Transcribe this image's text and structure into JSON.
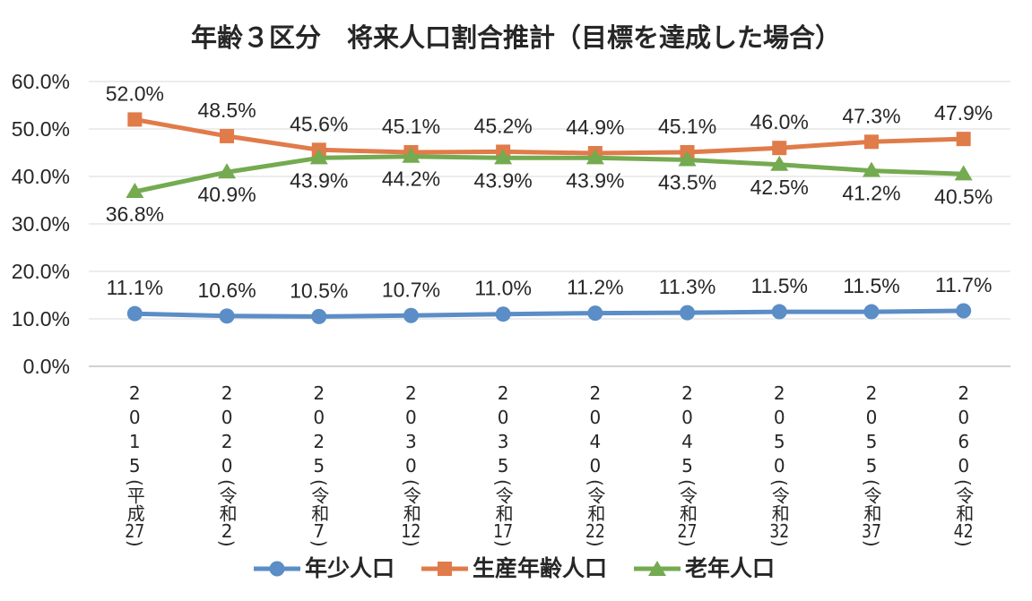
{
  "chart_data": {
    "type": "line",
    "title": "年齢３区分　将来人口割合推計（目標を達成した場合）",
    "categories": [
      "2015(平成27)",
      "2020(令和2)",
      "2025(令和7)",
      "2030(令和12)",
      "2035(令和17)",
      "2040(令和22)",
      "2045(令和27)",
      "2050(令和32)",
      "2055(令和37)",
      "2060(令和42)"
    ],
    "ylim": [
      0,
      60
    ],
    "yticks": [
      0,
      10,
      20,
      30,
      40,
      50,
      60
    ],
    "ytick_labels": [
      "0.0%",
      "10.0%",
      "20.0%",
      "30.0%",
      "40.0%",
      "50.0%",
      "60.0%"
    ],
    "grid": true,
    "legend": "bottom",
    "series": [
      {
        "name": "年少人口",
        "color": "#5b8dc6",
        "marker": "circle",
        "label_position": "above",
        "values": [
          11.1,
          10.6,
          10.5,
          10.7,
          11.0,
          11.2,
          11.3,
          11.5,
          11.5,
          11.7
        ],
        "labels": [
          "11.1%",
          "10.6%",
          "10.5%",
          "10.7%",
          "11.0%",
          "11.2%",
          "11.3%",
          "11.5%",
          "11.5%",
          "11.7%"
        ]
      },
      {
        "name": "生産年齢人口",
        "color": "#e07b4a",
        "marker": "square",
        "label_position": "above",
        "values": [
          52.0,
          48.5,
          45.6,
          45.1,
          45.2,
          44.9,
          45.1,
          46.0,
          47.3,
          47.9
        ],
        "labels": [
          "52.0%",
          "48.5%",
          "45.6%",
          "45.1%",
          "45.2%",
          "44.9%",
          "45.1%",
          "46.0%",
          "47.3%",
          "47.9%"
        ]
      },
      {
        "name": "老年人口",
        "color": "#74aa50",
        "marker": "triangle",
        "label_position": "below",
        "values": [
          36.8,
          40.9,
          43.9,
          44.2,
          43.9,
          43.9,
          43.5,
          42.5,
          41.2,
          40.5
        ],
        "labels": [
          "36.8%",
          "40.9%",
          "43.9%",
          "44.2%",
          "43.9%",
          "43.9%",
          "43.5%",
          "42.5%",
          "41.2%",
          "40.5%"
        ]
      }
    ]
  }
}
